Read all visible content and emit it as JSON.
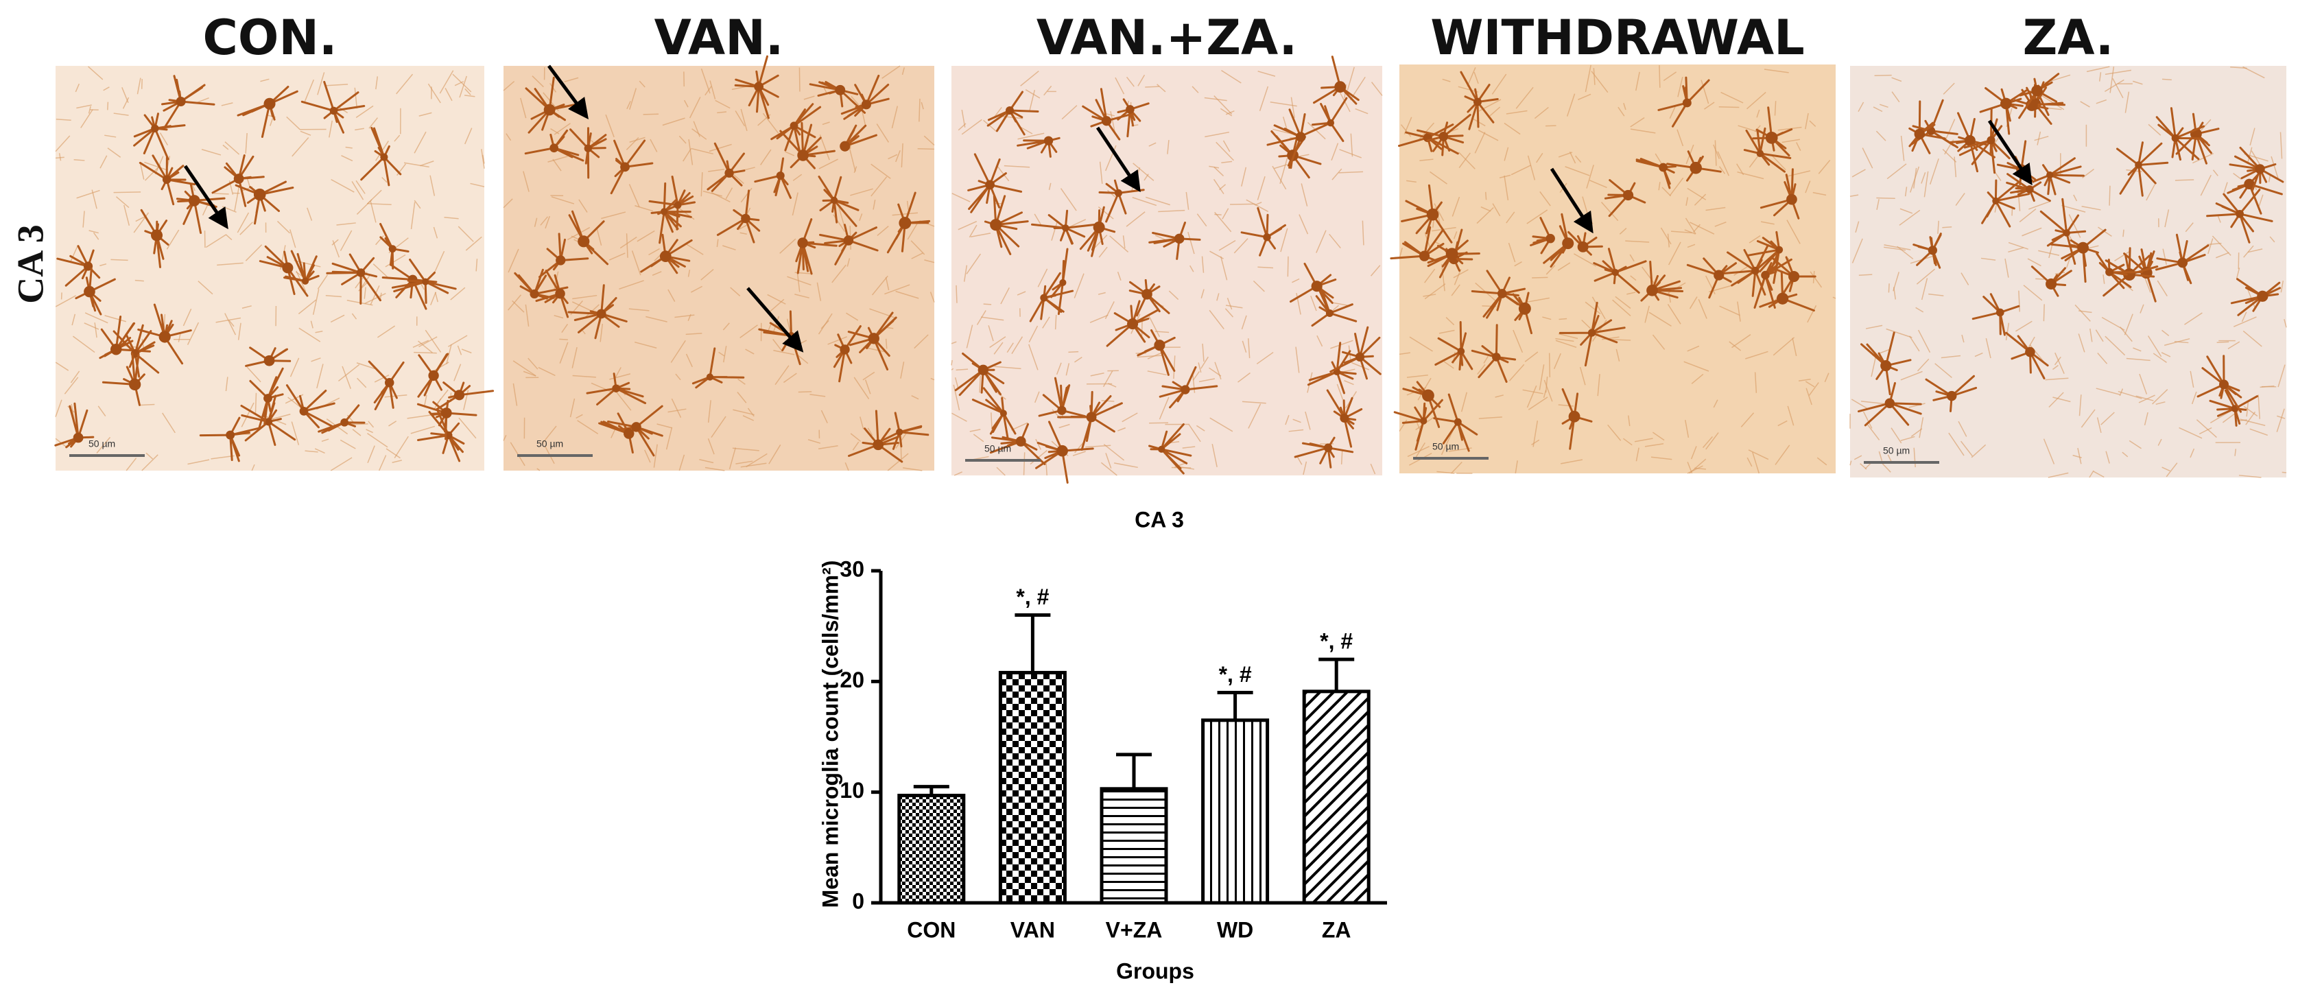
{
  "panels": {
    "row_label": "CA 3",
    "titles": [
      "CON.",
      "VAN.",
      "VAN.+ZA.",
      "WITHDRAWAL",
      "ZA."
    ],
    "scale_bar": "50 µm"
  },
  "chart_data": {
    "type": "bar",
    "title": "CA 3",
    "x_label": "Groups",
    "y_label": "Mean microglia count (cells/mm²)",
    "categories": [
      "CON",
      "VAN",
      "V+ZA",
      "WD",
      "ZA"
    ],
    "values": [
      9.7,
      20.8,
      10.3,
      16.5,
      19.1
    ],
    "errors": [
      0.8,
      5.2,
      3.1,
      2.5,
      2.9
    ],
    "annotations": [
      null,
      "*, #",
      null,
      "*, #",
      "*, #"
    ],
    "patterns": [
      "dense-checker",
      "checker",
      "horizontal",
      "vertical",
      "diagonal"
    ],
    "ylim": [
      0,
      30
    ],
    "yticks": [
      0,
      10,
      20,
      30
    ]
  }
}
